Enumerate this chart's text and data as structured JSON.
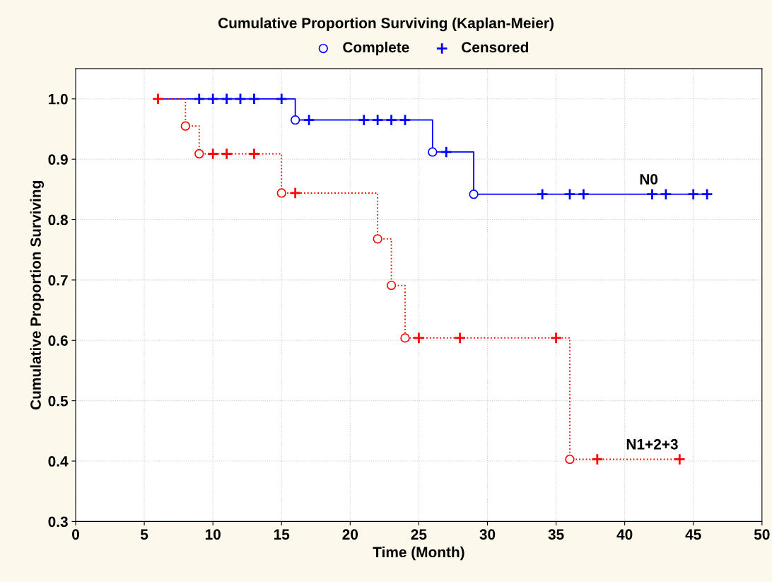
{
  "chart_data": {
    "type": "step",
    "title": "Cumulative Proportion Surviving (Kaplan-Meier)",
    "xlabel": "Time (Month)",
    "ylabel": "Cumulative Proportion Surviving",
    "xlim": [
      0,
      50
    ],
    "xticks": [
      0,
      5,
      10,
      15,
      20,
      25,
      30,
      35,
      40,
      45,
      50
    ],
    "ylim": [
      0.3,
      1.05
    ],
    "yticks": [
      {
        "value": 0.3,
        "label": "0.3"
      },
      {
        "value": 0.4,
        "label": "0.4"
      },
      {
        "value": 0.5,
        "label": "0.5"
      },
      {
        "value": 0.6,
        "label": "0.6"
      },
      {
        "value": 0.7,
        "label": "0.7"
      },
      {
        "value": 0.8,
        "label": "0.8"
      },
      {
        "value": 0.9,
        "label": "0.9"
      },
      {
        "value": 1.0,
        "label": "1.0"
      }
    ],
    "grid": true,
    "legend": "top",
    "series": [
      {
        "name": "N0",
        "color": "#0000ff",
        "line_style": "solid",
        "marker": "none",
        "x": [
          6,
          16,
          26,
          29,
          46
        ],
        "values": [
          1.0,
          0.965,
          0.912,
          0.842,
          0.842
        ]
      },
      {
        "name": "N1+2+3",
        "color": "#ff0000",
        "line_style": "dotted",
        "marker": "none",
        "x": [
          6,
          8,
          9,
          15,
          22,
          23,
          24,
          36,
          44
        ],
        "values": [
          1.0,
          0.955,
          0.909,
          0.844,
          0.768,
          0.691,
          0.604,
          0.403,
          0.403
        ]
      },
      {
        "type": "scatter",
        "name": "Complete",
        "color": "#0000ff",
        "marker": "circle",
        "x": [
          16,
          26,
          29
        ],
        "values": [
          0.965,
          0.912,
          0.842
        ]
      },
      {
        "type": "scatter",
        "name": "Censored",
        "color": "#0000ff",
        "marker": "cross",
        "x": [
          9,
          10,
          11,
          12,
          13,
          15,
          17,
          21,
          22,
          23,
          24,
          27,
          34,
          36,
          37,
          42,
          43,
          45,
          46
        ],
        "values": [
          1.0,
          1.0,
          1.0,
          1.0,
          1.0,
          1.0,
          0.965,
          0.965,
          0.965,
          0.965,
          0.965,
          0.912,
          0.842,
          0.842,
          0.842,
          0.842,
          0.842,
          0.842,
          0.842
        ]
      },
      {
        "type": "scatter",
        "color": "#ff0000",
        "marker": "circle",
        "x": [
          8,
          9,
          15,
          22,
          23,
          24,
          36
        ],
        "values": [
          0.955,
          0.909,
          0.844,
          0.768,
          0.691,
          0.604,
          0.403
        ]
      },
      {
        "type": "scatter",
        "color": "#ff0000",
        "marker": "cross",
        "x": [
          6,
          10,
          11,
          13,
          16,
          25,
          28,
          35,
          38,
          44
        ],
        "values": [
          1.0,
          0.909,
          0.909,
          0.909,
          0.844,
          0.604,
          0.604,
          0.604,
          0.403,
          0.403
        ]
      }
    ]
  }
}
